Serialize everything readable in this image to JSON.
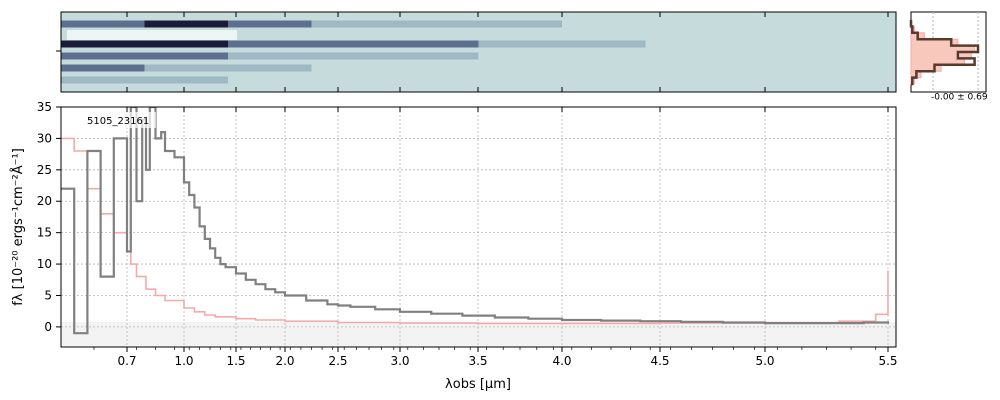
{
  "chart_data": [
    {
      "panel": "2d-spectrum",
      "type": "heatmap",
      "colormap": [
        "#c6dcdc",
        "#9fb9c4",
        "#5d6f8e",
        "#1b1b3a",
        "#ffffff"
      ],
      "bands": [
        {
          "row": 0.15,
          "values": [
            0.9,
            0.95,
            0.9,
            0.6,
            0.4,
            0.35,
            0.3,
            0.25,
            0.2,
            0.15
          ]
        },
        {
          "row": 0.4,
          "values": [
            1.0,
            1.0,
            0.9,
            0.85,
            0.7,
            0.5,
            0.35,
            0.25,
            0.2,
            0.15
          ]
        },
        {
          "row": 0.55,
          "values": [
            0.8,
            0.75,
            0.6,
            0.45,
            0.35,
            0.3,
            0.25,
            0.2,
            0.15,
            0.1
          ]
        },
        {
          "row": 0.7,
          "values": [
            0.7,
            0.55,
            0.4,
            0.3,
            0.25,
            0.2,
            0.15,
            0.15,
            0.1,
            0.1
          ]
        },
        {
          "row": 0.85,
          "values": [
            0.6,
            0.4,
            0.3,
            0.25,
            0.2,
            0.15,
            0.1,
            0.1,
            0.1,
            0.1
          ]
        }
      ]
    },
    {
      "panel": "1d-spectrum",
      "type": "line",
      "label": "5105_23161",
      "xlabel": "λobs [μm]",
      "ylabel": "fλ [10⁻²⁰ ergs⁻¹cm⁻²Å⁻¹]",
      "xticks": [
        "0.7",
        "1.0",
        "1.5",
        "2.0",
        "2.5",
        "3.0",
        "3.5",
        "4.0",
        "4.5",
        "5.0",
        "5.5"
      ],
      "xtick_values": [
        0.7,
        1.0,
        1.5,
        2.0,
        2.5,
        3.0,
        3.5,
        4.0,
        4.5,
        5.0,
        5.5
      ],
      "yticks": [
        "0",
        "5",
        "10",
        "15",
        "20",
        "25",
        "30",
        "35"
      ],
      "ytick_values": [
        0,
        5,
        10,
        15,
        20,
        25,
        30,
        35
      ],
      "xlim": [
        0.6,
        5.52
      ],
      "ylim": [
        -3.2,
        35
      ],
      "x_scale": "sqrt-like",
      "grid": true,
      "series": [
        {
          "role": "flux",
          "color": "#808080",
          "x": [
            0.6,
            0.62,
            0.64,
            0.66,
            0.68,
            0.7,
            0.72,
            0.75,
            0.78,
            0.8,
            0.82,
            0.85,
            0.88,
            0.9,
            0.95,
            1.0,
            1.05,
            1.1,
            1.15,
            1.2,
            1.25,
            1.3,
            1.35,
            1.4,
            1.5,
            1.6,
            1.7,
            1.8,
            1.9,
            2.0,
            2.2,
            2.4,
            2.5,
            2.6,
            2.8,
            3.0,
            3.2,
            3.4,
            3.6,
            3.8,
            4.0,
            4.2,
            4.4,
            4.6,
            4.8,
            5.0,
            5.2,
            5.4,
            5.5
          ],
          "y": [
            22,
            -1,
            28,
            8,
            30,
            12,
            35,
            20,
            33,
            25,
            35,
            30,
            31,
            28,
            27,
            23,
            21,
            19,
            16,
            14,
            12.5,
            11,
            10,
            9.5,
            8.5,
            7.5,
            6.8,
            6,
            5.5,
            5,
            4.2,
            3.6,
            3.4,
            3.2,
            2.8,
            2.4,
            2.1,
            1.8,
            1.5,
            1.3,
            1.1,
            1,
            0.9,
            0.8,
            0.7,
            0.6,
            0.6,
            0.7,
            0.9
          ]
        },
        {
          "role": "model",
          "color": "#f4aaaa",
          "x": [
            0.6,
            0.62,
            0.64,
            0.66,
            0.68,
            0.7,
            0.72,
            0.75,
            0.8,
            0.85,
            0.9,
            1.0,
            1.1,
            1.2,
            1.3,
            1.5,
            1.7,
            2.0,
            2.5,
            3.0,
            3.5,
            4.0,
            4.5,
            5.0,
            5.3,
            5.45,
            5.5
          ],
          "y": [
            30,
            28,
            22,
            18,
            15,
            12,
            10,
            8,
            6,
            5,
            4.2,
            3,
            2.4,
            1.9,
            1.6,
            1.3,
            1.1,
            0.9,
            0.7,
            0.6,
            0.55,
            0.55,
            0.6,
            0.7,
            0.9,
            2,
            9
          ]
        }
      ]
    },
    {
      "panel": "spatial-profile",
      "type": "line",
      "annotation": "-0.00 ± 0.69",
      "profile": [
        0.0,
        0.02,
        0.1,
        0.6,
        1.0,
        0.7,
        0.95,
        0.35,
        0.08,
        0.02,
        0.0
      ],
      "model": [
        0.0,
        0.05,
        0.2,
        0.7,
        0.95,
        0.9,
        0.8,
        0.45,
        0.15,
        0.05,
        0.0
      ]
    }
  ]
}
